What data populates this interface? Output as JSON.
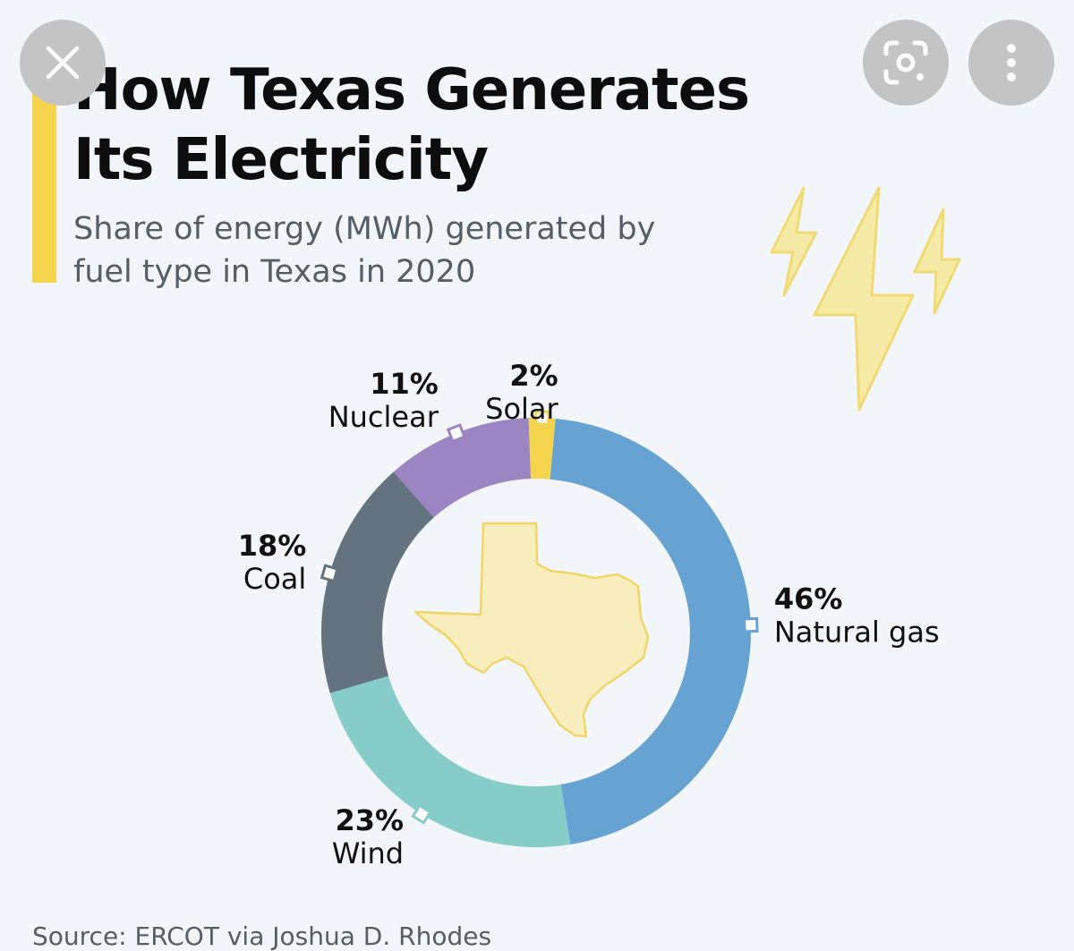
{
  "header": {
    "title": "How Texas Generates Its Electricity",
    "subtitle": "Share of energy (MWh) generated by fuel type in Texas in 2020"
  },
  "overlay": {
    "close_icon": "close-icon",
    "lens_icon": "lens-scan-icon",
    "more_icon": "more-vertical-icon"
  },
  "source": "Source: ERCOT via Joshua D. Rhodes",
  "colors": {
    "accent": "#f4d44d",
    "background": "#f2f5f9",
    "overlay_button": "#c4c4c4"
  },
  "chart_data": {
    "type": "pie",
    "style": "donut",
    "title": "How Texas Generates Its Electricity",
    "subtitle": "Share of energy (MWh) generated by fuel type in Texas in 2020",
    "unit": "%",
    "slices": [
      {
        "label": "Solar",
        "value": 2,
        "display": "2%",
        "color": "#f4d44d"
      },
      {
        "label": "Natural gas",
        "value": 46,
        "display": "46%",
        "color": "#66a3d2"
      },
      {
        "label": "Wind",
        "value": 23,
        "display": "23%",
        "color": "#86ccc8"
      },
      {
        "label": "Coal",
        "value": 18,
        "display": "18%",
        "color": "#63737f"
      },
      {
        "label": "Nuclear",
        "value": 11,
        "display": "11%",
        "color": "#9b85c3"
      }
    ],
    "center_graphic": "texas-map-icon",
    "decoration": "lightning-bolt-icons"
  }
}
